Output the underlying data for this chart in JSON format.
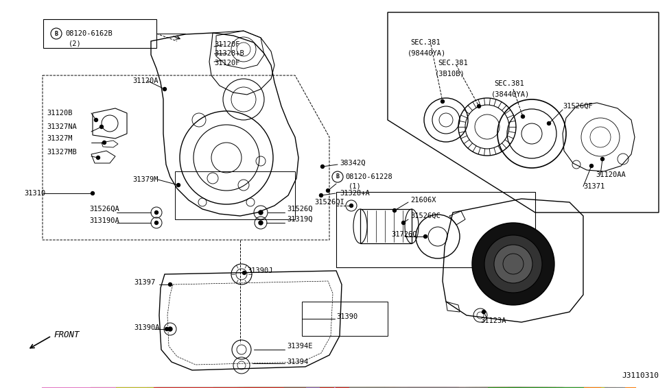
{
  "bg_color": "#ffffff",
  "line_color": "#000000",
  "diagram_id": "J3110310",
  "figsize": [
    9.75,
    5.66
  ],
  "dpi": 100,
  "labels": {
    "box_part": "B08120-6162B\n(2)",
    "box_part2": "B08120-61228\n(1)",
    "l31120A": "31120A",
    "l31120B": "31120B",
    "l31327NA": "31327NA",
    "l31327M": "31327M",
    "l31327MB": "31327MB",
    "l31379M": "31379M",
    "l31120F_a": "31120F",
    "l31328B": "31328+B",
    "l31120F_b": "31120F",
    "l38342Q": "38342Q",
    "l31328A": "31328+A",
    "l31310": "31310",
    "l31526QA": "31526QA",
    "l313190A": "313190A",
    "l31526Q": "31526Q",
    "l31319Q": "31319Q",
    "l31390J": "31390J",
    "l31397": "31397",
    "l31390A": "31390A",
    "l31394E": "31394E",
    "l31394": "31394",
    "l31390": "31390",
    "lSEC381a": "SEC.381\n(98440YA)",
    "lSEC381b": "SEC.381\n(3B10B)",
    "lSEC381c": "SEC.381\n(38440YA)",
    "l31526QF": "31526QF",
    "l31120AA": "31120AA",
    "l31371": "31371",
    "l31526QI": "31526QI",
    "l21606X": "21606X",
    "l31526QC": "31526QC",
    "l31726Q": "31726Q",
    "l31123A": "31123A",
    "front": "FRONT"
  },
  "colors": {
    "black": "#000000",
    "white": "#ffffff",
    "darkgray": "#333333"
  }
}
